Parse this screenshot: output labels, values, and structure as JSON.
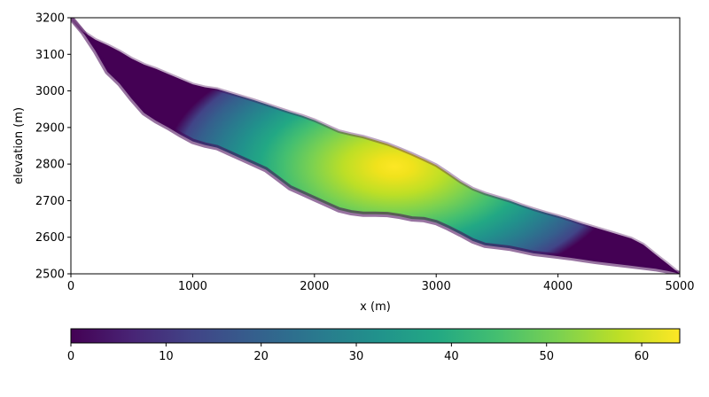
{
  "chart_data": {
    "type": "area",
    "title": "",
    "xlabel": "x (m)",
    "ylabel": "elevation (m)",
    "xlim": [
      0,
      5000
    ],
    "ylim": [
      2500,
      3200
    ],
    "xticks": [
      0,
      1000,
      2000,
      3000,
      4000,
      5000
    ],
    "yticks": [
      2500,
      2600,
      2700,
      2800,
      2900,
      3000,
      3100,
      3200
    ],
    "grid": false,
    "colormap": "viridis",
    "colorbar": {
      "orientation": "horizontal",
      "placement": "bottom",
      "range": [
        0,
        64
      ],
      "ticks": [
        0,
        10,
        20,
        30,
        40,
        50,
        60
      ]
    },
    "surface": {
      "x": [
        0,
        100,
        200,
        300,
        400,
        500,
        600,
        700,
        800,
        900,
        1000,
        1100,
        1200,
        1300,
        1400,
        1500,
        1600,
        1700,
        1800,
        1900,
        2000,
        2100,
        2200,
        2300,
        2400,
        2500,
        2600,
        2700,
        2800,
        2900,
        3000,
        3100,
        3200,
        3300,
        3400,
        3500,
        3600,
        3700,
        3800,
        3900,
        4000,
        4100,
        4200,
        4300,
        4400,
        4500,
        4600,
        4700,
        4800,
        4900,
        5000
      ],
      "y": [
        3200,
        3162,
        3140,
        3125,
        3108,
        3088,
        3072,
        3060,
        3046,
        3032,
        3018,
        3010,
        3005,
        2995,
        2985,
        2975,
        2964,
        2953,
        2942,
        2932,
        2920,
        2905,
        2890,
        2882,
        2875,
        2865,
        2855,
        2842,
        2828,
        2813,
        2797,
        2775,
        2752,
        2733,
        2720,
        2710,
        2700,
        2688,
        2677,
        2667,
        2658,
        2648,
        2637,
        2627,
        2617,
        2607,
        2597,
        2580,
        2553,
        2527,
        2500
      ]
    },
    "bed": {
      "x": [
        0,
        100,
        200,
        300,
        400,
        500,
        600,
        700,
        800,
        900,
        1000,
        1100,
        1200,
        1300,
        1400,
        1500,
        1600,
        1700,
        1800,
        1900,
        2000,
        2100,
        2200,
        2300,
        2400,
        2500,
        2600,
        2700,
        2800,
        2900,
        3000,
        3100,
        3200,
        3300,
        3400,
        3500,
        3600,
        3700,
        3800,
        3900,
        4000,
        4100,
        4200,
        4300,
        4400,
        4500,
        4600,
        4700,
        4800,
        4900,
        5000
      ],
      "y": [
        3200,
        3160,
        3110,
        3052,
        3020,
        2978,
        2940,
        2918,
        2900,
        2880,
        2862,
        2852,
        2845,
        2830,
        2815,
        2800,
        2785,
        2760,
        2735,
        2720,
        2705,
        2690,
        2675,
        2667,
        2663,
        2663,
        2662,
        2657,
        2650,
        2648,
        2640,
        2625,
        2608,
        2590,
        2578,
        2574,
        2570,
        2563,
        2556,
        2552,
        2548,
        2544,
        2539,
        2534,
        2530,
        2526,
        2522,
        2518,
        2514,
        2508,
        2500
      ]
    }
  }
}
